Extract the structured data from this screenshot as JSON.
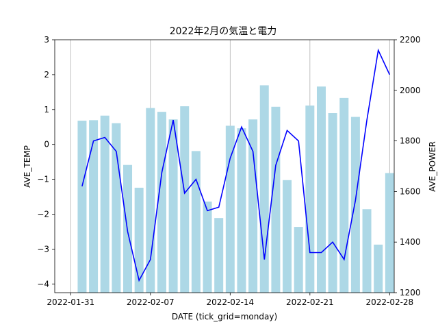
{
  "chart_data": {
    "type": "bar+line",
    "title": "2022年2月の気温と電力",
    "xlabel": "DATE (tick_grid=monday)",
    "ylabel_left": "AVE_TEMP",
    "ylabel_right": "AVE_POWER",
    "x_ticks": [
      "2022-01-31",
      "2022-02-07",
      "2022-02-14",
      "2022-02-21",
      "2022-02-28"
    ],
    "x_tick_days": [
      0,
      7,
      14,
      21,
      28
    ],
    "grid": "vertical lines at Mondays",
    "dates": [
      "2022-02-01",
      "2022-02-02",
      "2022-02-03",
      "2022-02-04",
      "2022-02-05",
      "2022-02-06",
      "2022-02-07",
      "2022-02-08",
      "2022-02-09",
      "2022-02-10",
      "2022-02-11",
      "2022-02-12",
      "2022-02-13",
      "2022-02-14",
      "2022-02-15",
      "2022-02-16",
      "2022-02-17",
      "2022-02-18",
      "2022-02-19",
      "2022-02-20",
      "2022-02-21",
      "2022-02-22",
      "2022-02-23",
      "2022-02-24",
      "2022-02-25",
      "2022-02-26",
      "2022-02-27",
      "2022-02-28"
    ],
    "days": [
      1,
      2,
      3,
      4,
      5,
      6,
      7,
      8,
      9,
      10,
      11,
      12,
      13,
      14,
      15,
      16,
      17,
      18,
      19,
      20,
      21,
      22,
      23,
      24,
      25,
      26,
      27,
      28
    ],
    "left_axis": {
      "ylim": [
        -4.25,
        3.0
      ],
      "ticks": [
        -4,
        -3,
        -2,
        -1,
        0,
        1,
        2,
        3
      ]
    },
    "right_axis": {
      "ylim": [
        1200,
        2200
      ],
      "ticks": [
        1200,
        1400,
        1600,
        1800,
        2000,
        2200
      ]
    },
    "series": [
      {
        "name": "AVE_POWER",
        "kind": "bar",
        "axis": "right",
        "color": "#add8e6",
        "values": [
          1880,
          1882,
          1900,
          1870,
          1705,
          1615,
          1930,
          1915,
          1885,
          1937,
          1760,
          1560,
          1495,
          1860,
          1850,
          1885,
          2020,
          1935,
          1645,
          1460,
          1940,
          2015,
          1910,
          1970,
          1895,
          1530,
          1390,
          1673
        ]
      },
      {
        "name": "AVE_TEMP",
        "kind": "line",
        "axis": "left",
        "color": "#0000ff",
        "values": [
          -1.2,
          0.1,
          0.2,
          -0.2,
          -2.5,
          -3.9,
          -3.3,
          -0.8,
          0.7,
          -1.4,
          -1.0,
          -1.9,
          -1.8,
          -0.4,
          0.5,
          -0.2,
          -3.3,
          -0.6,
          0.4,
          0.1,
          -3.1,
          -3.1,
          -2.8,
          -3.3,
          -1.6,
          0.7,
          2.7,
          2.0
        ]
      }
    ]
  }
}
